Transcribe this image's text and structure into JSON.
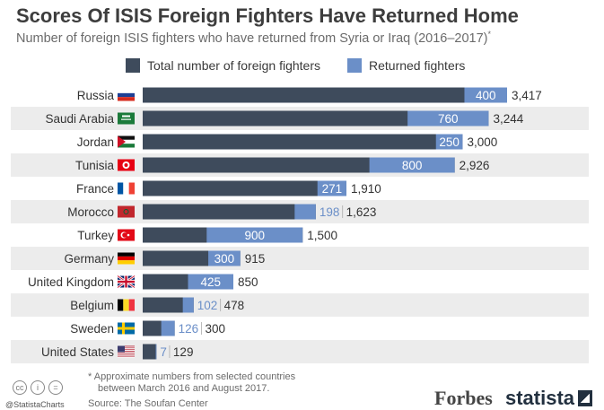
{
  "header": {
    "title": "Scores Of ISIS Foreign Fighters Have Returned Home",
    "subtitle": "Number of foreign ISIS fighters who have returned from Syria or Iraq (2016–2017)",
    "subtitle_mark": "*"
  },
  "legend": {
    "total_label": "Total number of foreign fighters",
    "returned_label": "Returned fighters"
  },
  "colors": {
    "total": "#3e4b5c",
    "returned": "#6b8fc8",
    "row_band": "#ececec"
  },
  "chart_data": {
    "type": "bar",
    "orientation": "horizontal",
    "stacked": "overlay",
    "categories": [
      "Russia",
      "Saudi Arabia",
      "Jordan",
      "Tunisia",
      "France",
      "Morocco",
      "Turkey",
      "Germany",
      "United Kingdom",
      "Belgium",
      "Sweden",
      "United States"
    ],
    "flags": [
      "russia-flag-icon",
      "saudi-arabia-flag-icon",
      "jordan-flag-icon",
      "tunisia-flag-icon",
      "france-flag-icon",
      "morocco-flag-icon",
      "turkey-flag-icon",
      "germany-flag-icon",
      "uk-flag-icon",
      "belgium-flag-icon",
      "sweden-flag-icon",
      "usa-flag-icon"
    ],
    "series": [
      {
        "name": "Total number of foreign fighters",
        "values": [
          3417,
          3244,
          3000,
          2926,
          1910,
          1623,
          1500,
          915,
          850,
          478,
          300,
          129
        ],
        "labels": [
          "3,417",
          "3,244",
          "3,000",
          "2,926",
          "1,910",
          "1,623",
          "1,500",
          "915",
          "850",
          "478",
          "300",
          "129"
        ]
      },
      {
        "name": "Returned fighters",
        "values": [
          400,
          760,
          250,
          800,
          271,
          198,
          900,
          300,
          425,
          102,
          126,
          7
        ],
        "labels": [
          "400",
          "760",
          "250",
          "800",
          "271",
          "198",
          "900",
          "300",
          "425",
          "102",
          "126",
          "7"
        ]
      }
    ],
    "xlim": [
      0,
      3417
    ],
    "grid": false,
    "legend_position": "top"
  },
  "footer": {
    "footnote_line1": "* Approximate numbers from selected countries",
    "footnote_line2": "between March 2016 and August 2017.",
    "source": "Source: The Soufan Center",
    "handle": "@StatistaCharts",
    "cc_icons": [
      "cc",
      "i",
      "="
    ],
    "forbes": "Forbes",
    "statista": "statista"
  }
}
